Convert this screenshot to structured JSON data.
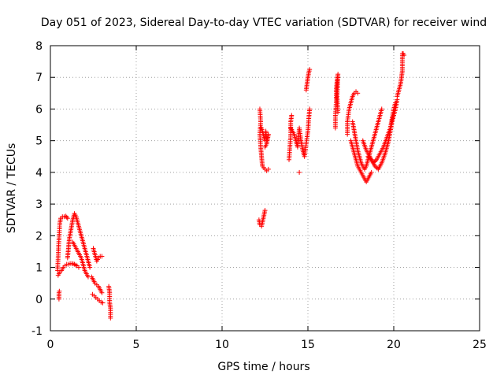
{
  "chart_data": {
    "type": "scatter",
    "title": "Day 051 of 2023, Sidereal Day-to-day VTEC variation (SDTVAR) for receiver wind",
    "xlabel": "GPS time / hours",
    "ylabel": "SDTVAR / TECUs",
    "xlim": [
      0,
      25
    ],
    "ylim": [
      -1,
      8
    ],
    "xticks": [
      "0",
      "5",
      "10",
      "15",
      "20",
      "25"
    ],
    "yticks": [
      "-1",
      "0",
      "1",
      "2",
      "3",
      "4",
      "5",
      "6",
      "7",
      "8"
    ],
    "grid": true,
    "marker": "plus",
    "color": "#ff0000",
    "series": [
      {
        "name": "SDTVAR",
        "segments": [
          [
            [
              0.42,
              0.9
            ],
            [
              0.45,
              1.3
            ],
            [
              0.48,
              1.7
            ],
            [
              0.52,
              2.1
            ],
            [
              0.55,
              2.4
            ],
            [
              0.6,
              2.55
            ],
            [
              0.7,
              2.6
            ],
            [
              0.8,
              2.6
            ],
            [
              0.9,
              2.62
            ],
            [
              1.0,
              2.55
            ]
          ],
          [
            [
              0.45,
              0.75
            ],
            [
              0.55,
              0.85
            ],
            [
              0.65,
              0.9
            ],
            [
              0.75,
              1.0
            ],
            [
              0.85,
              1.05
            ],
            [
              0.95,
              1.1
            ],
            [
              1.05,
              1.1
            ],
            [
              1.15,
              1.12
            ],
            [
              1.25,
              1.12
            ],
            [
              1.4,
              1.1
            ],
            [
              1.55,
              1.05
            ],
            [
              1.65,
              1.0
            ]
          ],
          [
            [
              0.5,
              0.0
            ],
            [
              0.5,
              0.2
            ],
            [
              0.52,
              0.25
            ]
          ],
          [
            [
              1.0,
              1.3
            ],
            [
              1.05,
              1.6
            ],
            [
              1.1,
              1.9
            ],
            [
              1.2,
              2.2
            ],
            [
              1.3,
              2.5
            ],
            [
              1.4,
              2.7
            ],
            [
              1.5,
              2.6
            ],
            [
              1.6,
              2.4
            ],
            [
              1.7,
              2.2
            ],
            [
              1.8,
              2.0
            ],
            [
              1.9,
              1.8
            ],
            [
              2.0,
              1.6
            ],
            [
              2.1,
              1.4
            ],
            [
              2.2,
              1.2
            ],
            [
              2.3,
              1.0
            ]
          ],
          [
            [
              1.3,
              1.8
            ],
            [
              1.4,
              1.7
            ],
            [
              1.5,
              1.6
            ],
            [
              1.6,
              1.5
            ],
            [
              1.7,
              1.4
            ],
            [
              1.8,
              1.3
            ],
            [
              1.9,
              1.1
            ],
            [
              2.0,
              0.9
            ],
            [
              2.1,
              0.8
            ],
            [
              2.2,
              0.7
            ]
          ],
          [
            [
              2.4,
              0.7
            ],
            [
              2.5,
              0.6
            ],
            [
              2.6,
              0.5
            ],
            [
              2.7,
              0.45
            ],
            [
              2.8,
              0.4
            ],
            [
              2.9,
              0.3
            ],
            [
              3.0,
              0.2
            ]
          ],
          [
            [
              2.45,
              0.15
            ],
            [
              2.55,
              0.1
            ],
            [
              2.65,
              0.05
            ],
            [
              2.75,
              0.0
            ],
            [
              2.85,
              -0.05
            ],
            [
              2.95,
              -0.1
            ],
            [
              3.05,
              -0.12
            ]
          ],
          [
            [
              2.5,
              1.6
            ],
            [
              2.6,
              1.4
            ],
            [
              2.7,
              1.2
            ],
            [
              2.8,
              1.3
            ],
            [
              2.9,
              1.35
            ],
            [
              3.0,
              1.35
            ]
          ],
          [
            [
              3.4,
              0.4
            ],
            [
              3.45,
              0.2
            ],
            [
              3.45,
              -0.1
            ],
            [
              3.5,
              -0.3
            ],
            [
              3.5,
              -0.6
            ]
          ],
          [
            [
              12.15,
              2.5
            ],
            [
              12.2,
              2.35
            ],
            [
              12.3,
              2.3
            ],
            [
              12.4,
              2.55
            ],
            [
              12.5,
              2.8
            ]
          ],
          [
            [
              12.2,
              6.0
            ],
            [
              12.25,
              5.6
            ],
            [
              12.2,
              5.2
            ],
            [
              12.25,
              4.8
            ],
            [
              12.3,
              4.5
            ],
            [
              12.35,
              4.2
            ],
            [
              12.5,
              4.1
            ],
            [
              12.6,
              4.05
            ],
            [
              12.7,
              4.1
            ]
          ],
          [
            [
              12.3,
              5.4
            ],
            [
              12.4,
              5.2
            ],
            [
              12.5,
              5.0
            ],
            [
              12.55,
              5.3
            ],
            [
              12.6,
              5.0
            ],
            [
              12.7,
              5.2
            ],
            [
              12.6,
              4.9
            ],
            [
              12.5,
              4.8
            ]
          ],
          [
            [
              13.9,
              4.4
            ],
            [
              13.95,
              4.8
            ],
            [
              14.0,
              5.2
            ],
            [
              14.0,
              5.6
            ],
            [
              14.05,
              5.8
            ]
          ],
          [
            [
              14.0,
              5.4
            ],
            [
              14.2,
              5.2
            ],
            [
              14.3,
              5.0
            ],
            [
              14.4,
              4.8
            ],
            [
              14.5,
              5.4
            ],
            [
              14.6,
              5.0
            ],
            [
              14.7,
              4.7
            ],
            [
              14.8,
              4.5
            ],
            [
              14.9,
              4.9
            ],
            [
              15.0,
              5.3
            ],
            [
              15.05,
              5.7
            ],
            [
              15.1,
              6.0
            ]
          ],
          [
            [
              14.5,
              4.0
            ]
          ],
          [
            [
              14.9,
              6.6
            ],
            [
              14.95,
              6.8
            ],
            [
              15.0,
              7.0
            ],
            [
              15.05,
              7.15
            ],
            [
              15.1,
              7.25
            ]
          ],
          [
            [
              16.6,
              5.4
            ],
            [
              16.6,
              5.8
            ],
            [
              16.65,
              6.2
            ],
            [
              16.65,
              6.6
            ],
            [
              16.7,
              6.9
            ],
            [
              16.75,
              7.1
            ],
            [
              16.7,
              6.4
            ],
            [
              16.75,
              5.9
            ]
          ],
          [
            [
              17.3,
              5.2
            ],
            [
              17.3,
              5.6
            ],
            [
              17.4,
              6.0
            ],
            [
              17.5,
              6.2
            ],
            [
              17.6,
              6.4
            ],
            [
              17.7,
              6.5
            ],
            [
              17.8,
              6.55
            ],
            [
              17.9,
              6.5
            ]
          ],
          [
            [
              17.5,
              5.0
            ],
            [
              17.6,
              4.8
            ],
            [
              17.7,
              4.6
            ],
            [
              17.8,
              4.4
            ],
            [
              17.9,
              4.2
            ],
            [
              18.0,
              4.1
            ],
            [
              18.1,
              4.0
            ],
            [
              18.2,
              3.9
            ],
            [
              18.3,
              3.8
            ],
            [
              18.4,
              3.7
            ],
            [
              18.5,
              3.8
            ],
            [
              18.6,
              3.9
            ],
            [
              18.7,
              4.0
            ]
          ],
          [
            [
              17.6,
              5.6
            ],
            [
              17.7,
              5.3
            ],
            [
              17.8,
              5.0
            ],
            [
              17.9,
              4.7
            ],
            [
              18.0,
              4.5
            ],
            [
              18.1,
              4.3
            ],
            [
              18.2,
              4.2
            ],
            [
              18.3,
              4.1
            ],
            [
              18.4,
              4.2
            ],
            [
              18.5,
              4.4
            ],
            [
              18.6,
              4.6
            ],
            [
              18.7,
              4.8
            ],
            [
              18.8,
              5.0
            ],
            [
              18.9,
              5.2
            ],
            [
              19.0,
              5.4
            ],
            [
              19.1,
              5.6
            ],
            [
              19.2,
              5.8
            ],
            [
              19.3,
              6.0
            ]
          ],
          [
            [
              18.5,
              4.5
            ],
            [
              18.7,
              4.4
            ],
            [
              18.9,
              4.2
            ],
            [
              19.1,
              4.1
            ],
            [
              19.3,
              4.3
            ],
            [
              19.5,
              4.6
            ],
            [
              19.7,
              5.0
            ],
            [
              19.8,
              5.3
            ],
            [
              19.9,
              5.6
            ],
            [
              20.0,
              5.8
            ],
            [
              20.1,
              6.0
            ],
            [
              20.2,
              6.3
            ]
          ],
          [
            [
              18.2,
              5.0
            ],
            [
              18.4,
              4.7
            ],
            [
              18.6,
              4.5
            ],
            [
              18.8,
              4.3
            ],
            [
              19.0,
              4.4
            ],
            [
              19.2,
              4.6
            ],
            [
              19.4,
              4.8
            ],
            [
              19.6,
              5.1
            ],
            [
              19.8,
              5.4
            ],
            [
              20.0,
              6.0
            ],
            [
              20.1,
              6.2
            ]
          ],
          [
            [
              20.2,
              6.4
            ],
            [
              20.3,
              6.6
            ],
            [
              20.4,
              6.8
            ],
            [
              20.45,
              7.0
            ],
            [
              20.5,
              7.2
            ],
            [
              20.5,
              7.75
            ],
            [
              20.55,
              7.75
            ],
            [
              20.6,
              7.7
            ]
          ]
        ]
      }
    ]
  }
}
